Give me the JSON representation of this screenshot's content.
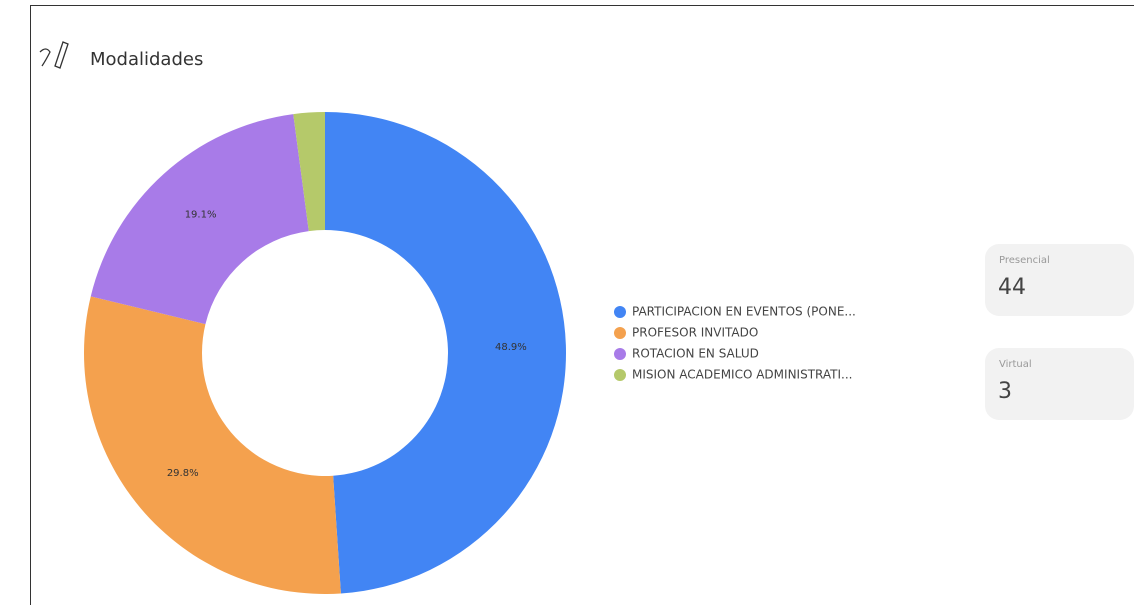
{
  "title": "Modalidades",
  "chart_data": {
    "type": "donut",
    "categories": [
      "PARTICIPACION EN EVENTOS (PONE...",
      "PROFESOR INVITADO",
      "ROTACION EN SALUD",
      "MISION ACADEMICO ADMINISTRATI..."
    ],
    "values": [
      48.9,
      29.8,
      19.1,
      2.1
    ],
    "value_labels": [
      "48.9%",
      "29.8%",
      "19.1%",
      null
    ],
    "colors": [
      "#4285f4",
      "#f4a14e",
      "#a87be8",
      "#b5c96a"
    ],
    "legend": "right"
  },
  "cards": [
    {
      "label": "Presencial",
      "value": 44
    },
    {
      "label": "Virtual",
      "value": 3
    }
  ]
}
